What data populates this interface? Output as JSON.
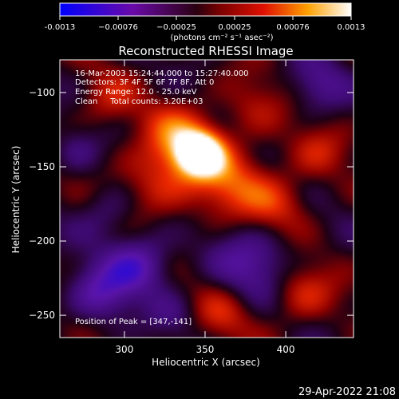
{
  "colorbar": {
    "tick_labels": [
      "-0.0013",
      "−0.00076",
      "−0.00025",
      "0.00025",
      "0.00076",
      "0.0013"
    ],
    "units": "(photons cm⁻² s⁻¹ asec⁻²)",
    "range": [
      -0.0013,
      0.0013
    ],
    "colors": [
      "#0000ff",
      "#6a0aa8",
      "#5a0020",
      "#b00000",
      "#ff5a00",
      "#ffb000",
      "#ffffff"
    ]
  },
  "chart_data": {
    "type": "heatmap",
    "title": "Reconstructed RHESSI Image",
    "xlabel": "Heliocentric X (arcsec)",
    "ylabel": "Heliocentric Y (arcsec)",
    "xlim": [
      260,
      442
    ],
    "ylim": [
      -265,
      -78
    ],
    "x_ticks": [
      300,
      350,
      400
    ],
    "y_ticks": [
      -100,
      -150,
      -200,
      -250
    ],
    "peak": {
      "x": 347,
      "y": -141
    },
    "annotations": [
      "16-Mar-2003 15:24:44.000 to 15:27:40.000",
      "Detectors: 3F 4F 5F 6F 7F 8F, Att 0",
      "Energy Range: 12.0 - 25.0 keV",
      "Clean     Total counts: 3.20E+03"
    ],
    "peak_label": "Position of Peak = [347,-141]"
  },
  "footer": {
    "timestamp": "29-Apr-2022 21:08"
  }
}
